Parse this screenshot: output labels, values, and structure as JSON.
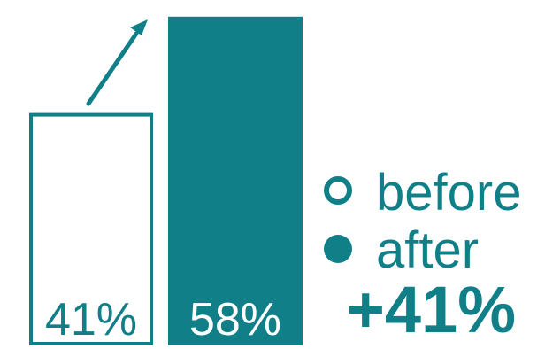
{
  "accent_color": "#107f87",
  "background_color": "#ffffff",
  "chart_data": {
    "type": "bar",
    "categories": [
      "before",
      "after"
    ],
    "values": [
      41,
      58
    ],
    "value_labels": [
      "41%",
      "58%"
    ],
    "legend": [
      {
        "label": "before",
        "style": "outline"
      },
      {
        "label": "after",
        "style": "filled"
      }
    ],
    "legend_placement": "right",
    "annotation": "+41%",
    "trend_arrow": "up",
    "grid": false
  }
}
